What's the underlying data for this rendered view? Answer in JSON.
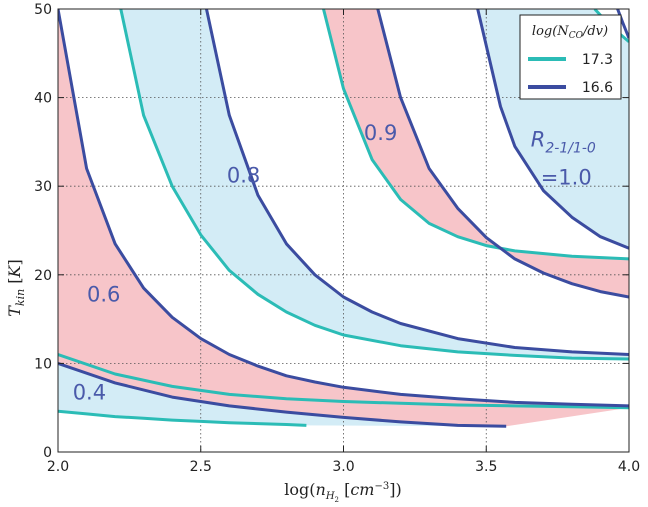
{
  "chart_data": {
    "type": "line",
    "xlabel": "log(n_H2 [cm^-3])",
    "ylabel": "T_kin [K]",
    "xlim": [
      2.0,
      4.0
    ],
    "ylim": [
      0,
      50
    ],
    "xticks": [
      2.0,
      2.5,
      3.0,
      3.5,
      4.0
    ],
    "xtick_labels": [
      "2.0",
      "2.5",
      "3.0",
      "3.5",
      "4.0"
    ],
    "yticks": [
      0,
      10,
      20,
      30,
      40,
      50
    ],
    "ytick_labels": [
      "0",
      "10",
      "20",
      "30",
      "40",
      "50"
    ],
    "grid": true,
    "legend": {
      "title": "log(N_CO/dv)",
      "placement": "top-right",
      "entries": [
        {
          "label": "17.3",
          "color": "#2bbcb6"
        },
        {
          "label": "16.6",
          "color": "#3b4ca0"
        }
      ]
    },
    "colors": {
      "cyan": "#2bbcb6",
      "navy": "#3b4ca0",
      "pink_fill": "#f7c5c9",
      "blue_fill": "#d3ecf6",
      "region_text": "#4a5aaa"
    },
    "series": [
      {
        "name": "17.3",
        "ratio": 0.4,
        "color": "#2bbcb6",
        "x": [
          2.0,
          2.1,
          2.2,
          2.3,
          2.4,
          2.5,
          2.6,
          2.7,
          2.8,
          2.87
        ],
        "y": [
          4.6,
          4.3,
          4.0,
          3.8,
          3.6,
          3.45,
          3.3,
          3.2,
          3.1,
          3.0
        ]
      },
      {
        "name": "16.6",
        "ratio": 0.4,
        "color": "#3b4ca0",
        "x": [
          2.0,
          2.2,
          2.4,
          2.6,
          2.8,
          3.0,
          3.2,
          3.4,
          3.57
        ],
        "y": [
          10.0,
          7.8,
          6.2,
          5.2,
          4.5,
          3.9,
          3.4,
          3.0,
          2.9
        ]
      },
      {
        "name": "17.3",
        "ratio": 0.6,
        "color": "#2bbcb6",
        "x": [
          2.0,
          2.2,
          2.4,
          2.6,
          2.8,
          3.0,
          3.2,
          3.4,
          3.6,
          3.8,
          4.0
        ],
        "y": [
          11.0,
          8.8,
          7.4,
          6.5,
          6.0,
          5.7,
          5.5,
          5.3,
          5.2,
          5.1,
          5.0
        ]
      },
      {
        "name": "16.6",
        "ratio": 0.6,
        "color": "#3b4ca0",
        "x": [
          2.0,
          2.1,
          2.2,
          2.3,
          2.4,
          2.5,
          2.6,
          2.7,
          2.8,
          2.9,
          3.0,
          3.2,
          3.4,
          3.6,
          3.8,
          4.0
        ],
        "y": [
          50,
          32,
          23.5,
          18.5,
          15.2,
          12.8,
          11.0,
          9.7,
          8.6,
          7.9,
          7.3,
          6.5,
          6.0,
          5.6,
          5.4,
          5.2
        ]
      },
      {
        "name": "17.3",
        "ratio": 0.8,
        "color": "#2bbcb6",
        "x": [
          2.22,
          2.3,
          2.4,
          2.5,
          2.6,
          2.7,
          2.8,
          2.9,
          3.0,
          3.2,
          3.4,
          3.6,
          3.8,
          4.0
        ],
        "y": [
          50,
          38,
          30,
          24.5,
          20.5,
          17.8,
          15.8,
          14.3,
          13.2,
          12.0,
          11.3,
          10.9,
          10.6,
          10.5
        ]
      },
      {
        "name": "16.6",
        "ratio": 0.8,
        "color": "#3b4ca0",
        "x": [
          2.52,
          2.6,
          2.7,
          2.8,
          2.9,
          3.0,
          3.1,
          3.2,
          3.4,
          3.6,
          3.8,
          4.0
        ],
        "y": [
          50,
          38,
          29,
          23.5,
          20.0,
          17.5,
          15.8,
          14.5,
          12.8,
          11.8,
          11.3,
          11.0
        ]
      },
      {
        "name": "17.3",
        "ratio": 0.9,
        "color": "#2bbcb6",
        "x": [
          2.93,
          3.0,
          3.1,
          3.2,
          3.3,
          3.4,
          3.5,
          3.6,
          3.8,
          4.0
        ],
        "y": [
          50,
          41,
          33,
          28.5,
          25.8,
          24.3,
          23.3,
          22.7,
          22.1,
          21.8
        ]
      },
      {
        "name": "16.6",
        "ratio": 0.9,
        "color": "#3b4ca0",
        "x": [
          3.12,
          3.2,
          3.3,
          3.4,
          3.5,
          3.6,
          3.7,
          3.8,
          3.9,
          4.0
        ],
        "y": [
          50,
          40,
          32,
          27.5,
          24.2,
          21.8,
          20.2,
          19.0,
          18.1,
          17.5
        ]
      },
      {
        "name": "16.6",
        "ratio": 1.0,
        "color": "#3b4ca0",
        "x": [
          3.47,
          3.55,
          3.6,
          3.7,
          3.8,
          3.9,
          4.0
        ],
        "y": [
          50,
          39,
          34.5,
          29.5,
          26.5,
          24.3,
          23.0
        ]
      },
      {
        "name": "17.3",
        "ratio": 1.0,
        "color": "#2bbcb6",
        "x": [
          3.88,
          3.92,
          3.96,
          4.0
        ],
        "y": [
          50,
          48.6,
          47.4,
          46.3
        ]
      },
      {
        "name": "16.6",
        "ratio": 1.05,
        "color": "#3b4ca0",
        "x": [
          3.96,
          3.98,
          4.0
        ],
        "y": [
          50,
          48.3,
          46.7
        ]
      }
    ],
    "fills": [
      {
        "color": "pink",
        "lower": 1,
        "upper": 2
      },
      {
        "color": "blue",
        "lower": 0,
        "upper": 1
      },
      {
        "color": "pink",
        "lower": 2,
        "upper": 3
      },
      {
        "color": "blue",
        "lower": 4,
        "upper": 5
      },
      {
        "color": "pink",
        "lower": 6,
        "upper": 7
      },
      {
        "color": "blue",
        "lower": 8,
        "upper": 9
      }
    ],
    "annotations": [
      {
        "text": "0.4",
        "x": 2.11,
        "y": 5.9
      },
      {
        "text": "0.6",
        "x": 2.16,
        "y": 17.0
      },
      {
        "text": "0.8",
        "x": 2.65,
        "y": 30.4
      },
      {
        "text": "0.9",
        "x": 3.13,
        "y": 35.2
      },
      {
        "text": "R_{2-1/1-0}",
        "x": 3.77,
        "y": 34.5
      },
      {
        "text": "=1.0",
        "x": 3.78,
        "y": 30.2
      }
    ]
  }
}
